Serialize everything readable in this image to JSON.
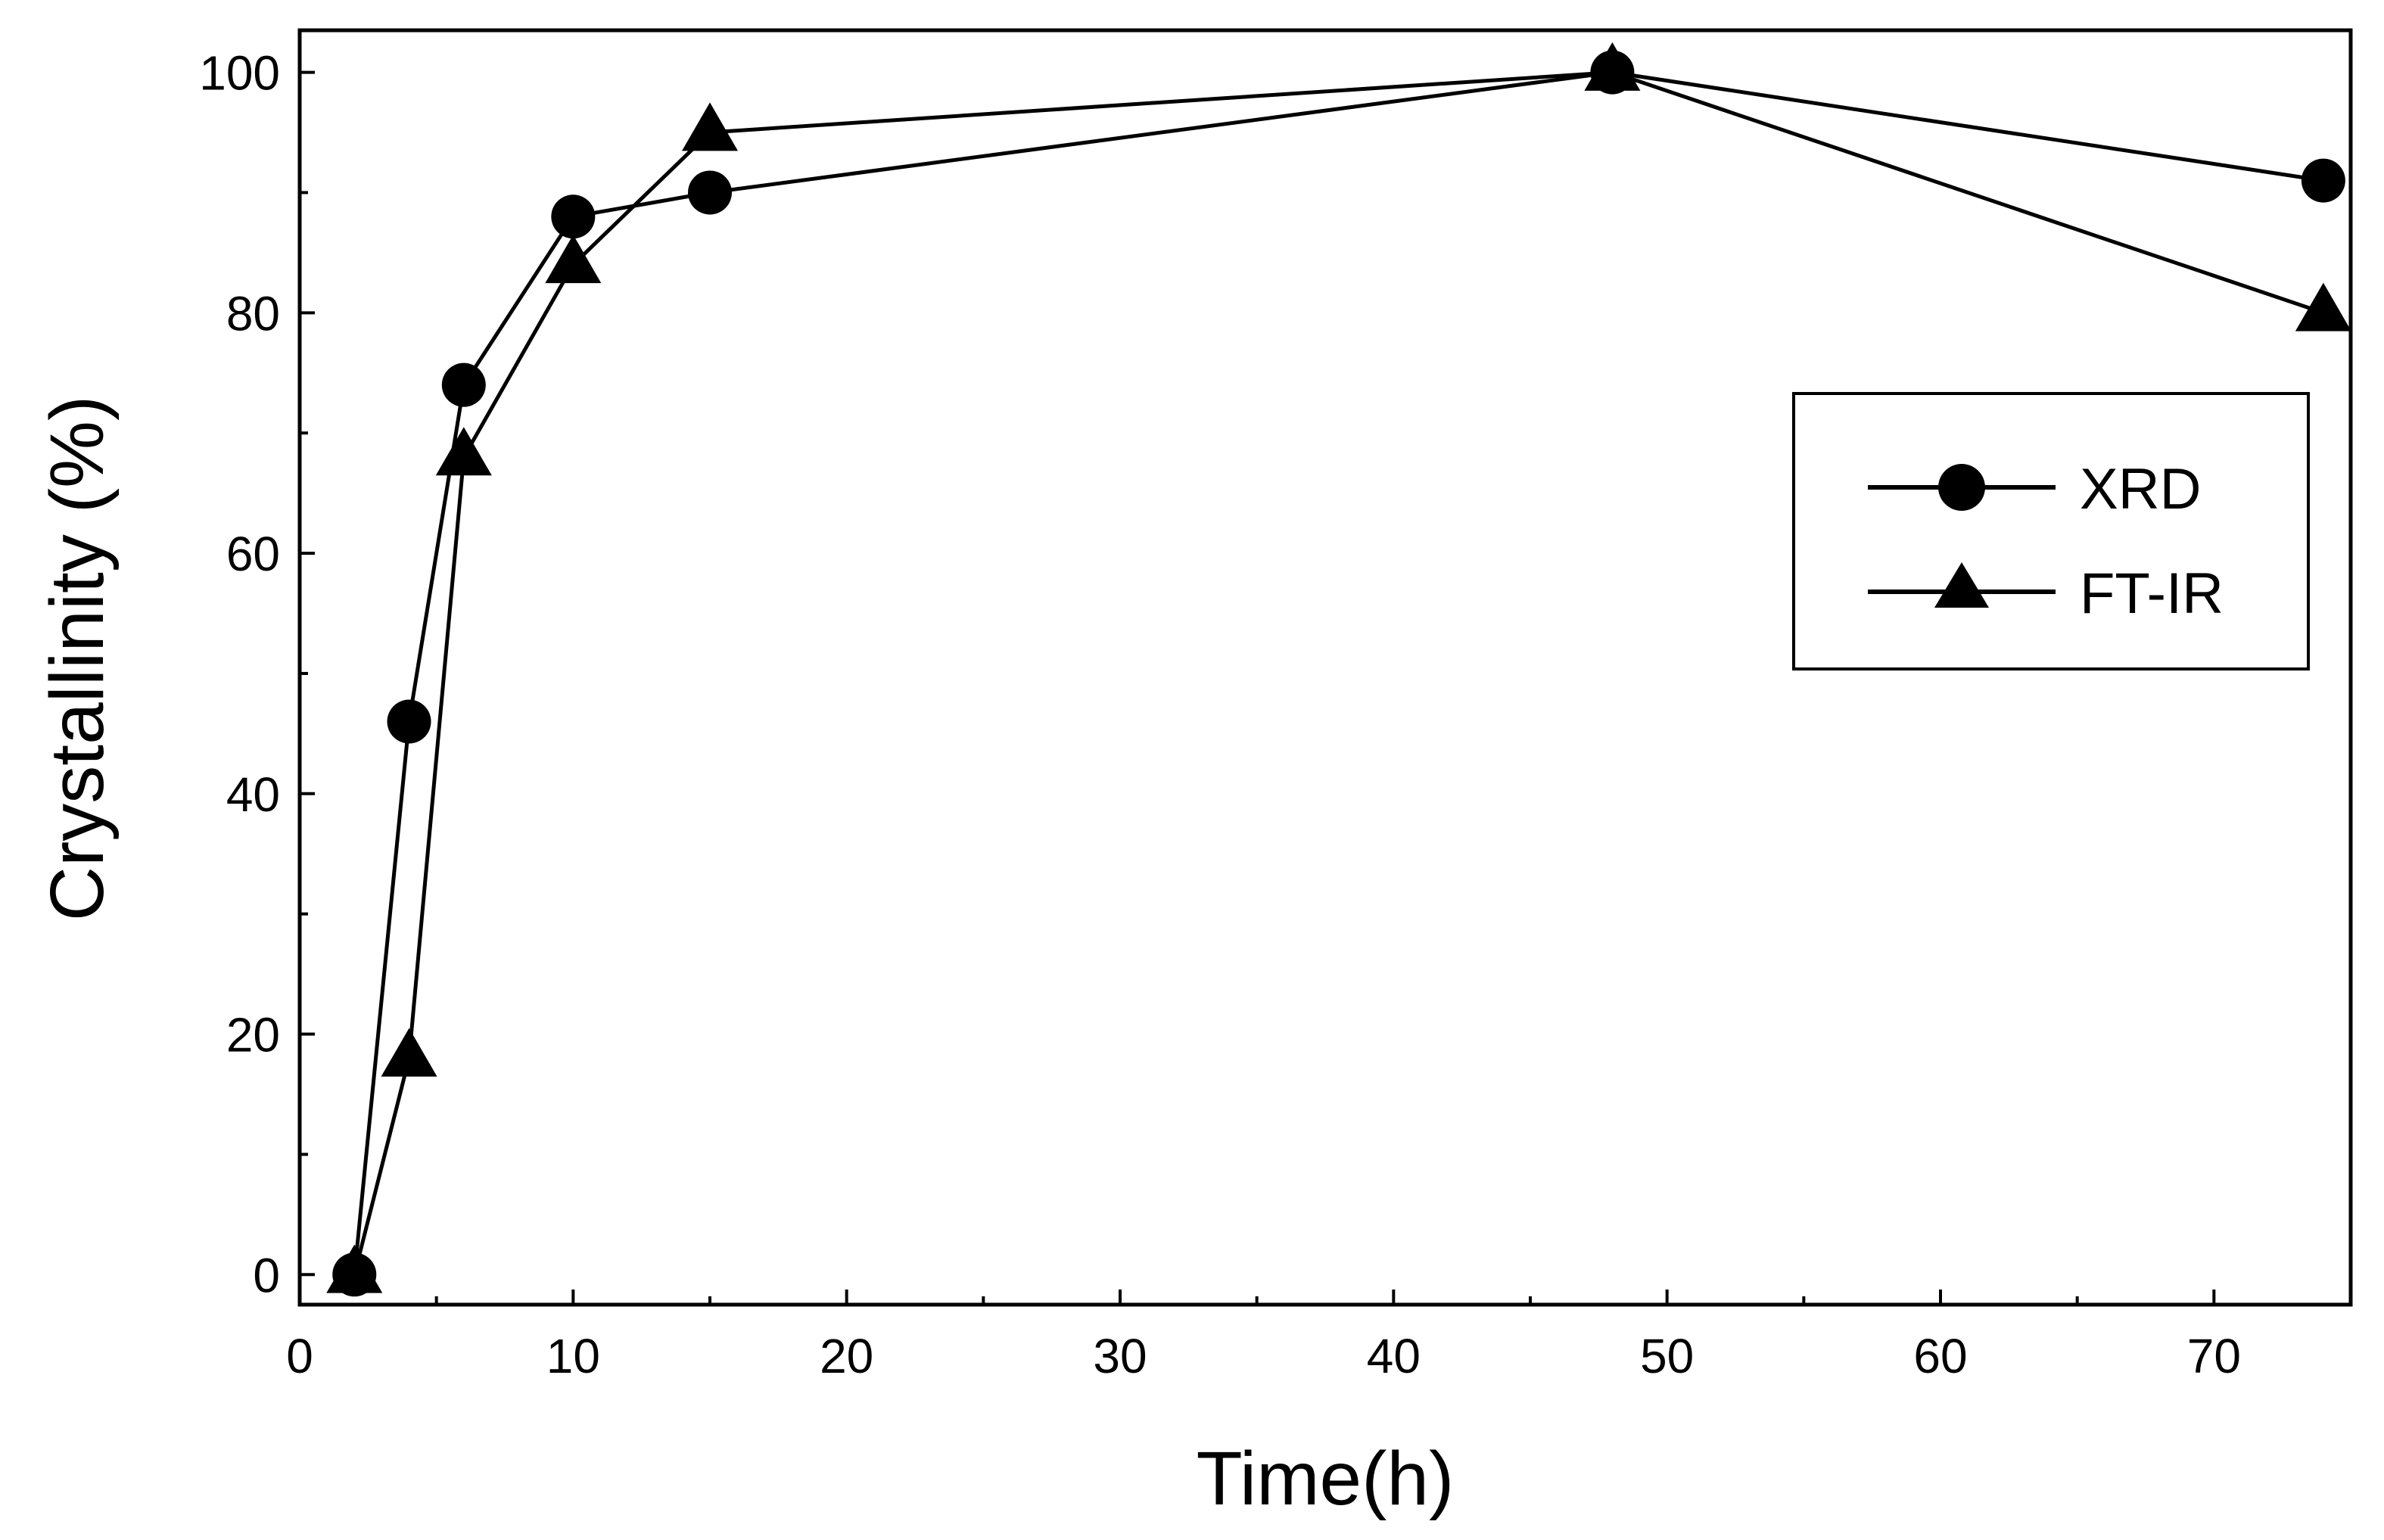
{
  "chart_data": {
    "type": "line",
    "title": "",
    "xlabel": "Time(h)",
    "ylabel": "Crystallinity (%)",
    "xlim": [
      0,
      75
    ],
    "ylim": [
      -2.5,
      103.5
    ],
    "xticks": [
      0,
      10,
      20,
      30,
      40,
      50,
      60,
      70
    ],
    "yticks": [
      0,
      20,
      40,
      60,
      80,
      100
    ],
    "grid": false,
    "legend_position": "right",
    "series": [
      {
        "name": "XRD",
        "marker": "circle",
        "x": [
          2,
          4,
          6,
          10,
          15,
          48,
          74
        ],
        "y": [
          0,
          46,
          74,
          88,
          90,
          100,
          91
        ]
      },
      {
        "name": "FT-IR",
        "marker": "triangle",
        "x": [
          2,
          4,
          6,
          10,
          15,
          48,
          74
        ],
        "y": [
          0,
          18,
          68,
          84,
          95,
          100,
          80
        ]
      }
    ]
  }
}
